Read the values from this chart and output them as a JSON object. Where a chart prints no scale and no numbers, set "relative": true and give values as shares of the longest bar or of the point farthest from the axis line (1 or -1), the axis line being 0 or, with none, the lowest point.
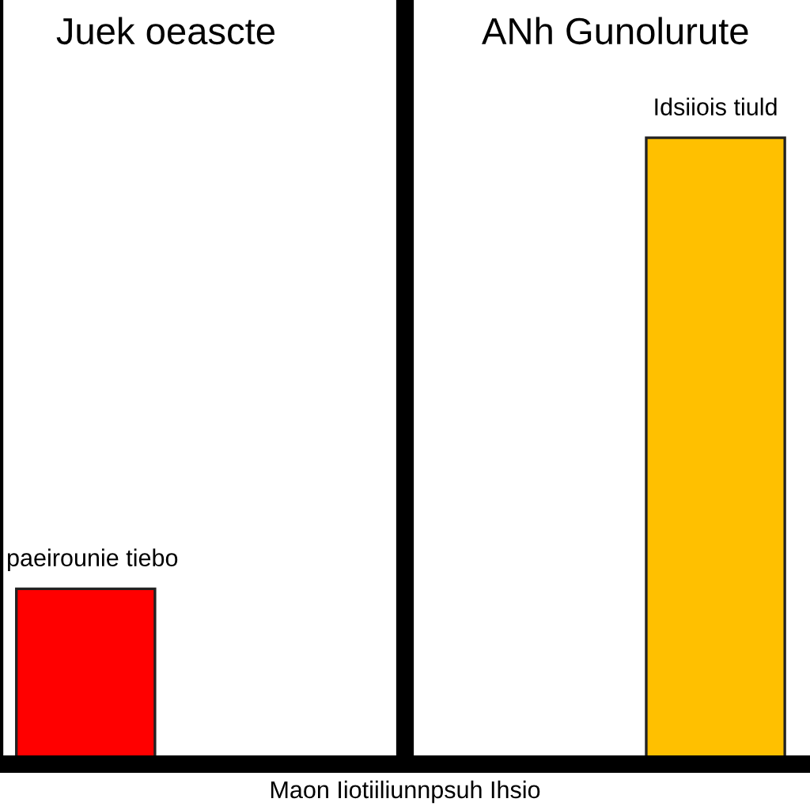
{
  "chart_data": {
    "type": "bar",
    "relative": true,
    "categories": [
      null,
      null
    ],
    "values": [
      0.28,
      1
    ],
    "colors": [
      "#ff0000",
      "#ffc000"
    ],
    "xlabel": "Maon Iiotiiliunnpsuh Ihsio",
    "annotations": [
      "Juek oeascte",
      "ANh Gunolurute",
      {
        "text": "paeirounie tiebo",
        "y": 0.28
      },
      {
        "text": "Idsiiois tiuld",
        "y": 1
      }
    ],
    "grid": false,
    "legend": false
  }
}
